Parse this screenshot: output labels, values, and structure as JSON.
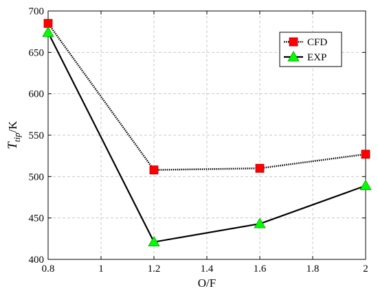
{
  "chart_data": {
    "type": "line",
    "title": "",
    "xlabel": "O/F",
    "ylabel_main": "T",
    "ylabel_sub": "tip",
    "ylabel_unit": "/K",
    "xlim": [
      0.8,
      2.0
    ],
    "ylim": [
      400,
      700
    ],
    "xticks": [
      0.8,
      1.0,
      1.2,
      1.4,
      1.6,
      1.8,
      2.0
    ],
    "xtick_labels": [
      "0.8",
      "1",
      "1.2",
      "1.4",
      "1.6",
      "1.8",
      "2"
    ],
    "yticks": [
      400,
      450,
      500,
      550,
      600,
      650,
      700
    ],
    "ytick_labels": [
      "400",
      "450",
      "500",
      "550",
      "600",
      "650",
      "700"
    ],
    "grid": true,
    "legend_position": "top-right",
    "series": [
      {
        "name": "CFD",
        "marker": "square",
        "marker_color": "#ff0000",
        "line_style": "dotted",
        "x": [
          0.8,
          1.2,
          1.6,
          2.0
        ],
        "y": [
          685,
          508,
          510,
          527
        ]
      },
      {
        "name": "EXP",
        "marker": "triangle",
        "marker_color": "#00ff00",
        "line_style": "solid",
        "x": [
          0.8,
          1.2,
          1.6,
          2.0
        ],
        "y": [
          674,
          421,
          443,
          489
        ]
      }
    ]
  }
}
